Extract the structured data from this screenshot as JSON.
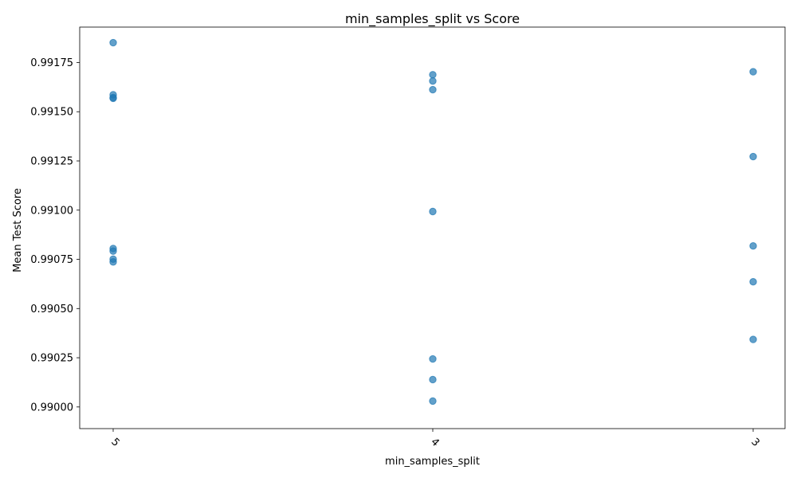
{
  "chart_data": {
    "type": "scatter",
    "title": "min_samples_split vs Score",
    "xlabel": "min_samples_split",
    "ylabel": "Mean Test Score",
    "x_categories": [
      "5",
      "4",
      "3"
    ],
    "ylim": [
      0.98989,
      0.99193
    ],
    "y_ticks": [
      0.99,
      0.99025,
      0.9905,
      0.99075,
      0.991,
      0.99125,
      0.9915,
      0.99175
    ],
    "y_tick_labels": [
      "0.99000",
      "0.99025",
      "0.99050",
      "0.99075",
      "0.99100",
      "0.99125",
      "0.99150",
      "0.99175"
    ],
    "grid": false,
    "color": "#1f77b4",
    "points": [
      {
        "x": "5",
        "y": 0.991851
      },
      {
        "x": "5",
        "y": 0.991586
      },
      {
        "x": "5",
        "y": 0.991572
      },
      {
        "x": "5",
        "y": 0.991568
      },
      {
        "x": "5",
        "y": 0.990805
      },
      {
        "x": "5",
        "y": 0.990792
      },
      {
        "x": "5",
        "y": 0.990751
      },
      {
        "x": "5",
        "y": 0.990737
      },
      {
        "x": "4",
        "y": 0.991688
      },
      {
        "x": "4",
        "y": 0.991656
      },
      {
        "x": "4",
        "y": 0.991612
      },
      {
        "x": "4",
        "y": 0.990993
      },
      {
        "x": "4",
        "y": 0.990244
      },
      {
        "x": "4",
        "y": 0.990139
      },
      {
        "x": "4",
        "y": 0.99003
      },
      {
        "x": "3",
        "y": 0.991703
      },
      {
        "x": "3",
        "y": 0.991272
      },
      {
        "x": "3",
        "y": 0.990818
      },
      {
        "x": "3",
        "y": 0.990636
      },
      {
        "x": "3",
        "y": 0.990343
      }
    ]
  }
}
